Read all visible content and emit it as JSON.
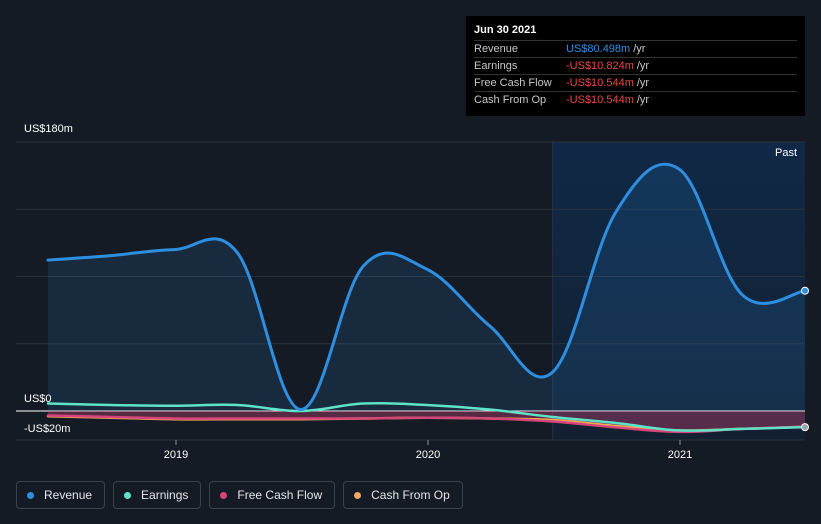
{
  "tooltip": {
    "date": "Jun 30 2021",
    "rows": [
      {
        "label": "Revenue",
        "value": "US$80.498m",
        "unit": "/yr",
        "color": "#2e8fe0"
      },
      {
        "label": "Earnings",
        "value": "-US$10.824m",
        "unit": "/yr",
        "color": "#e84848"
      },
      {
        "label": "Free Cash Flow",
        "value": "-US$10.544m",
        "unit": "/yr",
        "color": "#e84848"
      },
      {
        "label": "Cash From Op",
        "value": "-US$10.544m",
        "unit": "/yr",
        "color": "#e84848"
      }
    ]
  },
  "past_label": "Past",
  "legend": [
    {
      "label": "Revenue",
      "color": "#2e8fe0"
    },
    {
      "label": "Earnings",
      "color": "#5fe3c8"
    },
    {
      "label": "Free Cash Flow",
      "color": "#d6457a"
    },
    {
      "label": "Cash From Op",
      "color": "#f2a85c"
    }
  ],
  "chart_data": {
    "type": "line",
    "ylim": [
      -20,
      180
    ],
    "y_ticks": [
      "US$180m",
      "US$0",
      "-US$20m"
    ],
    "x_ticks": [
      {
        "label": "2019",
        "x": 2019.0
      },
      {
        "label": "2020",
        "x": 2020.0
      },
      {
        "label": "2021",
        "x": 2021.0
      }
    ],
    "past_start": 2020.5,
    "x_range": [
      2018.5,
      2021.5
    ],
    "series": [
      {
        "name": "Revenue",
        "color": "#2e8fe0",
        "area": true,
        "x": [
          2018.5,
          2018.75,
          2019.0,
          2019.25,
          2019.5,
          2019.75,
          2020.0,
          2020.25,
          2020.5,
          2020.75,
          2021.0,
          2021.25,
          2021.5
        ],
        "values": [
          101,
          104,
          108,
          106,
          1,
          97,
          95,
          57,
          26,
          133,
          162,
          78,
          80.5
        ]
      },
      {
        "name": "Earnings",
        "color": "#5fe3c8",
        "area": false,
        "x": [
          2018.5,
          2018.75,
          2019.0,
          2019.25,
          2019.5,
          2019.75,
          2020.0,
          2020.25,
          2020.5,
          2020.75,
          2021.0,
          2021.25,
          2021.5
        ],
        "values": [
          5,
          4,
          3.5,
          4,
          0,
          5,
          4,
          1,
          -4,
          -8,
          -13,
          -12,
          -10.8
        ]
      },
      {
        "name": "Free Cash Flow",
        "color": "#d6457a",
        "area": true,
        "x": [
          2018.5,
          2018.75,
          2019.0,
          2019.25,
          2019.5,
          2019.75,
          2020.0,
          2020.25,
          2020.5,
          2020.75,
          2021.0,
          2021.25,
          2021.5
        ],
        "values": [
          -3,
          -4,
          -5,
          -5,
          -5,
          -5,
          -4.5,
          -5,
          -7,
          -11,
          -14,
          -12,
          -10.5
        ]
      },
      {
        "name": "Cash From Op",
        "color": "#f2a85c",
        "area": false,
        "x": [
          2018.5,
          2018.75,
          2019.0,
          2019.25,
          2019.5,
          2019.75,
          2020.0,
          2020.25,
          2020.5,
          2020.75,
          2021.0,
          2021.25,
          2021.5
        ],
        "values": [
          -3.5,
          -4.5,
          -5.5,
          -5.5,
          -5.5,
          -5,
          -4.5,
          -5,
          -6,
          -10,
          -13,
          -12,
          -10.5
        ]
      }
    ]
  }
}
